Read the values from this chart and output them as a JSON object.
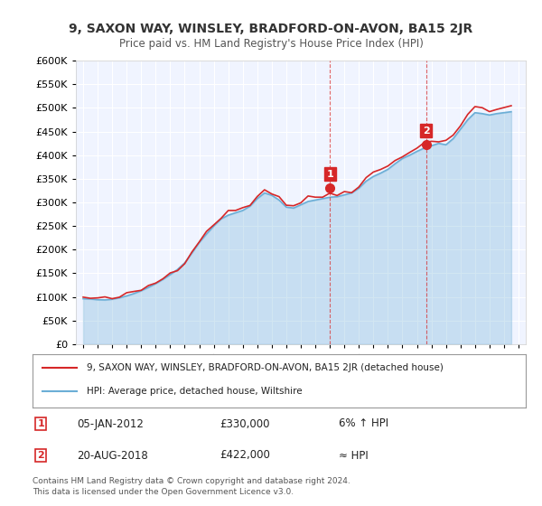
{
  "title": "9, SAXON WAY, WINSLEY, BRADFORD-ON-AVON, BA15 2JR",
  "subtitle": "Price paid vs. HM Land Registry's House Price Index (HPI)",
  "legend_line1": "9, SAXON WAY, WINSLEY, BRADFORD-ON-AVON, BA15 2JR (detached house)",
  "legend_line2": "HPI: Average price, detached house, Wiltshire",
  "sale1_date": "05-JAN-2012",
  "sale1_price": "£330,000",
  "sale1_note": "6% ↑ HPI",
  "sale2_date": "20-AUG-2018",
  "sale2_price": "£422,000",
  "sale2_note": "≈ HPI",
  "footer": "Contains HM Land Registry data © Crown copyright and database right 2024.\nThis data is licensed under the Open Government Licence v3.0.",
  "hpi_color": "#6baed6",
  "price_color": "#d62728",
  "sale_dot_color": "#d62728",
  "sale1_x": 2012.02,
  "sale2_x": 2018.64,
  "ylim_min": 0,
  "ylim_max": 600000,
  "xlim_min": 1994.5,
  "xlim_max": 2025.5,
  "background_color": "#ffffff",
  "plot_bg_color": "#f0f4ff",
  "grid_color": "#ffffff",
  "sale1_vline_color": "#d62728",
  "sale2_vline_color": "#d62728"
}
